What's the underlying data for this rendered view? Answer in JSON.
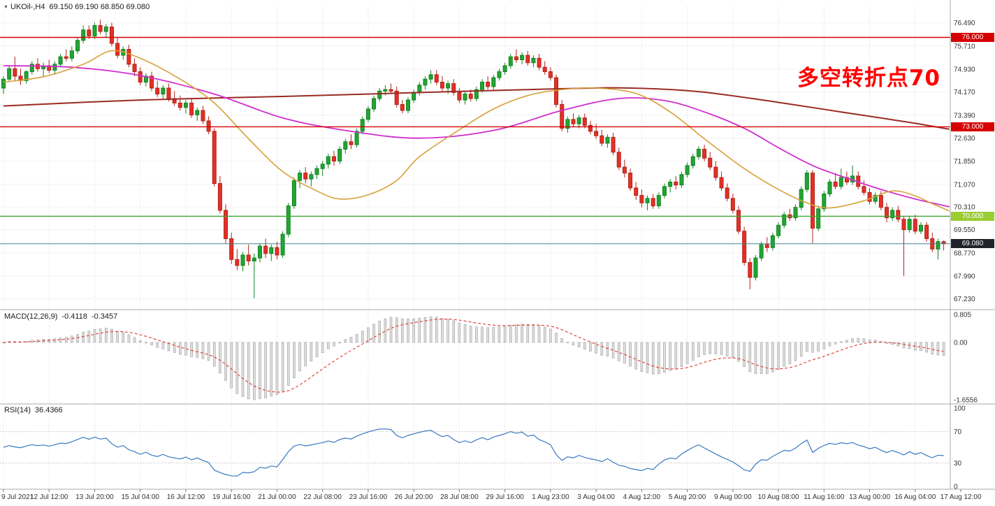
{
  "window": {
    "symbol_timeframe": "UKOil-,H4",
    "ohlc": "69.150 69.190 68.850 69.080"
  },
  "annotation": {
    "text": "多空转折点70",
    "color": "#fe0000"
  },
  "indicators": {
    "macd": {
      "label": "MACD(12,26,9)",
      "value_main": "-0.4118",
      "value_signal": "-0.3457",
      "fast": 12,
      "slow": 26,
      "signal": 9
    },
    "rsi": {
      "label": "RSI(14)",
      "value": "36.4366",
      "period": 14
    }
  },
  "chart_data": {
    "type": "candlestick",
    "symbol": "UKOil-",
    "timeframe": "H4",
    "last_bar": {
      "open": 69.15,
      "high": 69.19,
      "low": 68.85,
      "close": 69.08
    },
    "colors": {
      "up": "#22a534",
      "up_border": "#12831f",
      "down": "#e43026",
      "down_border": "#b2231a",
      "grid": "#dcdcdc",
      "macd_hist_fill": "#dedede",
      "macd_hist_stroke": "#9e9e9e",
      "macd_signal": "#e0382c",
      "rsi_line": "#3a79c0",
      "text": "#333333"
    },
    "price_axis": {
      "ticks": [
        {
          "t": "76.490",
          "v": 76.49
        },
        {
          "t": "75.710",
          "v": 75.71
        },
        {
          "t": "74.930",
          "v": 74.93
        },
        {
          "t": "74.170",
          "v": 74.17
        },
        {
          "t": "73.390",
          "v": 73.39
        },
        {
          "t": "72.630",
          "v": 72.63
        },
        {
          "t": "71.850",
          "v": 71.85
        },
        {
          "t": "71.070",
          "v": 71.07
        },
        {
          "t": "70.310",
          "v": 70.31
        },
        {
          "t": "69.550",
          "v": 69.55
        },
        {
          "t": "68.770",
          "v": 68.77
        },
        {
          "t": "67.990",
          "v": 67.99
        },
        {
          "t": "67.230",
          "v": 67.23
        }
      ]
    },
    "hlines": [
      {
        "label": "76.000",
        "value": 76.0,
        "line_color": "#d60000",
        "badge_color": "#d60000",
        "width": 1.4
      },
      {
        "label": "73.000",
        "value": 73.0,
        "line_color": "#d60000",
        "badge_color": "#d60000",
        "width": 1.4
      },
      {
        "label": "70.000",
        "value": 70.0,
        "line_color": "#3aa52f",
        "badge_color": "#9acd32",
        "width": 1.4
      },
      {
        "label": "69.080",
        "value": 69.08,
        "line_color": "#47808f",
        "badge_color": "#20242a",
        "width": 1
      }
    ],
    "time_axis": [
      "9 Jul 2021",
      "12 Jul 12:00",
      "13 Jul 20:00",
      "15 Jul 04:00",
      "16 Jul 12:00",
      "19 Jul 16:00",
      "21 Jul 00:00",
      "22 Jul 08:00",
      "23 Jul 16:00",
      "26 Jul 20:00",
      "28 Jul 08:00",
      "29 Jul 16:00",
      "1 Aug 23:00",
      "3 Aug 04:00",
      "4 Aug 12:00",
      "5 Aug 20:00",
      "9 Aug 00:00",
      "10 Aug 08:00",
      "11 Aug 16:00",
      "13 Aug 00:00",
      "16 Aug 04:00",
      "17 Aug 12:00"
    ],
    "macd_axis": {
      "max": 0.805,
      "min": -1.6556,
      "ticks": [
        {
          "t": "0.805",
          "v": 0.805
        },
        {
          "t": "0.00",
          "v": 0
        },
        {
          "t": "-1.6556",
          "v": -1.6556
        }
      ]
    },
    "rsi_axis": {
      "ticks": [
        {
          "t": "100",
          "v": 100
        },
        {
          "t": "70",
          "v": 70
        },
        {
          "t": "30",
          "v": 30
        },
        {
          "t": "0",
          "v": 0
        }
      ],
      "levels": [
        70,
        30
      ]
    },
    "ma_lines": [
      {
        "name": "ma-long-darkred",
        "color": "#9a2b22",
        "width": 2,
        "points": [
          [
            0,
            73.7
          ],
          [
            24,
            73.9
          ],
          [
            49,
            74.02
          ],
          [
            73,
            74.15
          ],
          [
            98,
            74.28
          ],
          [
            110,
            74.3
          ],
          [
            122,
            74.18
          ],
          [
            135,
            73.85
          ],
          [
            147,
            73.5
          ],
          [
            159,
            73.15
          ],
          [
            166,
            72.92
          ]
        ]
      },
      {
        "name": "ma-mid-magenta",
        "color": "#cf2ecf",
        "width": 1.8,
        "points": [
          [
            0,
            75.05
          ],
          [
            12,
            75.0
          ],
          [
            24,
            74.72
          ],
          [
            37,
            74.1
          ],
          [
            49,
            73.3
          ],
          [
            61,
            72.85
          ],
          [
            73,
            72.62
          ],
          [
            86,
            72.88
          ],
          [
            98,
            73.55
          ],
          [
            108,
            73.95
          ],
          [
            116,
            73.88
          ],
          [
            123,
            73.5
          ],
          [
            130,
            72.95
          ],
          [
            136,
            72.3
          ],
          [
            142,
            71.7
          ],
          [
            148,
            71.28
          ],
          [
            154,
            70.9
          ],
          [
            160,
            70.58
          ],
          [
            166,
            70.32
          ]
        ]
      },
      {
        "name": "ma-fast-orange",
        "color": "#d8a13a",
        "width": 1.6,
        "points": [
          [
            0,
            74.5
          ],
          [
            7,
            74.68
          ],
          [
            14,
            75.1
          ],
          [
            19,
            75.55
          ],
          [
            24,
            75.3
          ],
          [
            31,
            74.6
          ],
          [
            37,
            73.8
          ],
          [
            43,
            72.6
          ],
          [
            49,
            71.5
          ],
          [
            55,
            70.85
          ],
          [
            59,
            70.58
          ],
          [
            64,
            70.72
          ],
          [
            69,
            71.2
          ],
          [
            73,
            72.0
          ],
          [
            80,
            72.9
          ],
          [
            86,
            73.6
          ],
          [
            92,
            74.05
          ],
          [
            98,
            74.25
          ],
          [
            104,
            74.3
          ],
          [
            111,
            74.12
          ],
          [
            117,
            73.5
          ],
          [
            123,
            72.6
          ],
          [
            130,
            71.6
          ],
          [
            136,
            70.9
          ],
          [
            141,
            70.45
          ],
          [
            145,
            70.28
          ],
          [
            151,
            70.52
          ],
          [
            156,
            70.85
          ],
          [
            160,
            70.68
          ],
          [
            163,
            70.42
          ],
          [
            166,
            70.18
          ]
        ]
      }
    ],
    "candles": [
      [
        74.3,
        74.7,
        74.1,
        74.6
      ],
      [
        74.6,
        75.05,
        74.5,
        74.95
      ],
      [
        74.95,
        75.35,
        74.55,
        74.7
      ],
      [
        74.7,
        74.95,
        74.4,
        74.55
      ],
      [
        74.55,
        74.9,
        74.45,
        74.85
      ],
      [
        74.85,
        75.2,
        74.75,
        75.1
      ],
      [
        75.1,
        75.3,
        74.85,
        74.95
      ],
      [
        74.95,
        75.15,
        74.7,
        75.05
      ],
      [
        75.05,
        75.25,
        74.8,
        74.9
      ],
      [
        74.9,
        75.2,
        74.75,
        75.1
      ],
      [
        75.1,
        75.45,
        75.0,
        75.35
      ],
      [
        75.35,
        75.6,
        75.2,
        75.3
      ],
      [
        75.3,
        75.7,
        75.2,
        75.55
      ],
      [
        75.55,
        76.0,
        75.45,
        75.9
      ],
      [
        75.9,
        76.4,
        75.8,
        76.25
      ],
      [
        76.25,
        76.4,
        75.95,
        76.05
      ],
      [
        76.05,
        76.49,
        75.95,
        76.4
      ],
      [
        76.4,
        76.6,
        76.1,
        76.2
      ],
      [
        76.2,
        76.45,
        76.0,
        76.35
      ],
      [
        76.35,
        76.49,
        75.7,
        75.8
      ],
      [
        75.8,
        76.0,
        75.3,
        75.4
      ],
      [
        75.4,
        75.7,
        75.25,
        75.6
      ],
      [
        75.6,
        75.75,
        75.0,
        75.1
      ],
      [
        75.1,
        75.3,
        74.7,
        74.85
      ],
      [
        74.85,
        75.0,
        74.4,
        74.5
      ],
      [
        74.5,
        74.8,
        74.35,
        74.7
      ],
      [
        74.7,
        74.85,
        74.2,
        74.3
      ],
      [
        74.3,
        74.55,
        74.0,
        74.1
      ],
      [
        74.1,
        74.4,
        73.95,
        74.3
      ],
      [
        74.3,
        74.45,
        73.85,
        73.95
      ],
      [
        73.95,
        74.2,
        73.7,
        73.8
      ],
      [
        73.8,
        74.05,
        73.55,
        73.65
      ],
      [
        73.65,
        73.9,
        73.45,
        73.8
      ],
      [
        73.8,
        73.95,
        73.3,
        73.4
      ],
      [
        73.4,
        73.65,
        73.2,
        73.55
      ],
      [
        73.55,
        73.7,
        73.1,
        73.2
      ],
      [
        73.2,
        73.35,
        72.75,
        72.85
      ],
      [
        72.85,
        72.95,
        71.0,
        71.1
      ],
      [
        71.1,
        71.35,
        70.1,
        70.2
      ],
      [
        70.2,
        70.4,
        69.1,
        69.25
      ],
      [
        69.25,
        69.45,
        68.4,
        68.55
      ],
      [
        68.55,
        68.9,
        68.2,
        68.35
      ],
      [
        68.35,
        68.8,
        68.15,
        68.7
      ],
      [
        68.7,
        69.05,
        68.35,
        68.5
      ],
      [
        68.5,
        68.75,
        67.25,
        68.6
      ],
      [
        68.6,
        69.1,
        68.45,
        69.0
      ],
      [
        69.0,
        69.25,
        68.6,
        68.75
      ],
      [
        68.75,
        69.05,
        68.5,
        68.95
      ],
      [
        68.95,
        69.15,
        68.55,
        68.7
      ],
      [
        68.7,
        69.5,
        68.6,
        69.4
      ],
      [
        69.4,
        70.45,
        69.3,
        70.35
      ],
      [
        70.35,
        71.3,
        70.25,
        71.2
      ],
      [
        71.2,
        71.55,
        70.95,
        71.45
      ],
      [
        71.45,
        71.65,
        71.1,
        71.25
      ],
      [
        71.25,
        71.5,
        71.0,
        71.4
      ],
      [
        71.4,
        71.7,
        71.25,
        71.6
      ],
      [
        71.6,
        71.85,
        71.35,
        71.75
      ],
      [
        71.75,
        72.1,
        71.6,
        72.0
      ],
      [
        72.0,
        72.2,
        71.7,
        71.85
      ],
      [
        71.85,
        72.35,
        71.75,
        72.25
      ],
      [
        72.25,
        72.6,
        72.1,
        72.5
      ],
      [
        72.5,
        72.75,
        72.25,
        72.4
      ],
      [
        72.4,
        72.95,
        72.3,
        72.85
      ],
      [
        72.85,
        73.35,
        72.75,
        73.25
      ],
      [
        73.25,
        73.7,
        73.15,
        73.6
      ],
      [
        73.6,
        74.05,
        73.5,
        73.95
      ],
      [
        73.95,
        74.3,
        73.85,
        74.2
      ],
      [
        74.2,
        74.4,
        74.05,
        74.25
      ],
      [
        74.25,
        74.45,
        74.1,
        74.2
      ],
      [
        74.2,
        74.35,
        73.65,
        73.75
      ],
      [
        73.75,
        73.9,
        73.45,
        73.55
      ],
      [
        73.55,
        74.0,
        73.45,
        73.9
      ],
      [
        73.9,
        74.25,
        73.8,
        74.15
      ],
      [
        74.15,
        74.5,
        74.05,
        74.4
      ],
      [
        74.4,
        74.7,
        74.25,
        74.6
      ],
      [
        74.6,
        74.9,
        74.45,
        74.75
      ],
      [
        74.75,
        74.9,
        74.4,
        74.5
      ],
      [
        74.5,
        74.7,
        74.2,
        74.3
      ],
      [
        74.3,
        74.55,
        74.1,
        74.45
      ],
      [
        74.45,
        74.6,
        74.05,
        74.15
      ],
      [
        74.15,
        74.3,
        73.8,
        73.9
      ],
      [
        73.9,
        74.2,
        73.75,
        74.1
      ],
      [
        74.1,
        74.25,
        73.85,
        73.95
      ],
      [
        73.95,
        74.35,
        73.85,
        74.25
      ],
      [
        74.25,
        74.6,
        74.15,
        74.5
      ],
      [
        74.5,
        74.7,
        74.25,
        74.35
      ],
      [
        74.35,
        74.75,
        74.25,
        74.65
      ],
      [
        74.65,
        74.95,
        74.55,
        74.85
      ],
      [
        74.85,
        75.15,
        74.75,
        75.05
      ],
      [
        75.05,
        75.45,
        74.95,
        75.35
      ],
      [
        75.35,
        75.6,
        75.15,
        75.25
      ],
      [
        75.25,
        75.5,
        75.1,
        75.4
      ],
      [
        75.4,
        75.55,
        75.05,
        75.15
      ],
      [
        75.15,
        75.4,
        75.0,
        75.3
      ],
      [
        75.3,
        75.45,
        74.9,
        75.0
      ],
      [
        75.0,
        75.2,
        74.75,
        74.85
      ],
      [
        74.85,
        75.0,
        74.55,
        74.65
      ],
      [
        74.65,
        74.75,
        73.65,
        73.75
      ],
      [
        73.75,
        73.9,
        72.85,
        72.95
      ],
      [
        72.95,
        73.35,
        72.8,
        73.25
      ],
      [
        73.25,
        73.45,
        73.0,
        73.1
      ],
      [
        73.1,
        73.4,
        72.95,
        73.3
      ],
      [
        73.3,
        73.45,
        72.95,
        73.05
      ],
      [
        73.05,
        73.2,
        72.75,
        72.85
      ],
      [
        72.85,
        73.1,
        72.6,
        72.7
      ],
      [
        72.7,
        72.9,
        72.35,
        72.45
      ],
      [
        72.45,
        72.75,
        72.3,
        72.65
      ],
      [
        72.65,
        72.8,
        72.05,
        72.15
      ],
      [
        72.15,
        72.3,
        71.55,
        71.65
      ],
      [
        71.65,
        71.9,
        71.3,
        71.45
      ],
      [
        71.45,
        71.6,
        70.85,
        70.95
      ],
      [
        70.95,
        71.15,
        70.55,
        70.7
      ],
      [
        70.7,
        70.9,
        70.3,
        70.45
      ],
      [
        70.45,
        70.7,
        70.2,
        70.6
      ],
      [
        70.6,
        70.75,
        70.25,
        70.35
      ],
      [
        70.35,
        70.8,
        70.25,
        70.7
      ],
      [
        70.7,
        71.1,
        70.6,
        71.0
      ],
      [
        71.0,
        71.25,
        70.8,
        71.15
      ],
      [
        71.15,
        71.35,
        70.9,
        71.05
      ],
      [
        71.05,
        71.5,
        70.95,
        71.4
      ],
      [
        71.4,
        71.8,
        71.3,
        71.7
      ],
      [
        71.7,
        72.1,
        71.6,
        72.0
      ],
      [
        72.0,
        72.35,
        71.9,
        72.25
      ],
      [
        72.25,
        72.4,
        71.85,
        71.95
      ],
      [
        71.95,
        72.15,
        71.55,
        71.65
      ],
      [
        71.65,
        71.85,
        71.2,
        71.3
      ],
      [
        71.3,
        71.5,
        70.85,
        70.95
      ],
      [
        70.95,
        71.1,
        70.5,
        70.6
      ],
      [
        70.6,
        70.75,
        70.1,
        70.2
      ],
      [
        70.2,
        70.35,
        69.4,
        69.5
      ],
      [
        69.5,
        69.65,
        68.35,
        68.45
      ],
      [
        68.45,
        68.6,
        67.55,
        67.95
      ],
      [
        67.95,
        68.7,
        67.85,
        68.6
      ],
      [
        68.6,
        69.15,
        68.5,
        69.05
      ],
      [
        69.05,
        69.3,
        68.8,
        68.95
      ],
      [
        68.95,
        69.45,
        68.85,
        69.35
      ],
      [
        69.35,
        69.8,
        69.25,
        69.7
      ],
      [
        69.7,
        70.15,
        69.6,
        70.05
      ],
      [
        70.05,
        70.25,
        69.85,
        69.95
      ],
      [
        69.95,
        70.4,
        69.85,
        70.3
      ],
      [
        70.3,
        71.0,
        70.2,
        70.9
      ],
      [
        70.9,
        71.55,
        70.8,
        71.45
      ],
      [
        71.45,
        71.55,
        69.1,
        69.6
      ],
      [
        69.6,
        70.35,
        69.5,
        70.25
      ],
      [
        70.25,
        70.85,
        70.15,
        70.75
      ],
      [
        70.75,
        71.25,
        70.65,
        71.15
      ],
      [
        71.15,
        71.45,
        70.9,
        71.0
      ],
      [
        71.0,
        71.6,
        70.9,
        71.3
      ],
      [
        71.3,
        71.5,
        71.05,
        71.15
      ],
      [
        71.15,
        71.7,
        71.05,
        71.35
      ],
      [
        71.35,
        71.5,
        70.9,
        71.0
      ],
      [
        71.0,
        71.2,
        70.7,
        70.8
      ],
      [
        70.8,
        70.95,
        70.4,
        70.5
      ],
      [
        70.5,
        70.8,
        70.4,
        70.7
      ],
      [
        70.7,
        70.85,
        70.2,
        70.3
      ],
      [
        70.3,
        70.45,
        69.8,
        69.95
      ],
      [
        69.95,
        70.3,
        69.85,
        70.2
      ],
      [
        70.2,
        70.35,
        69.8,
        69.9
      ],
      [
        69.9,
        70.0,
        68.0,
        69.55
      ],
      [
        69.55,
        70.0,
        69.45,
        69.9
      ],
      [
        69.9,
        70.05,
        69.4,
        69.5
      ],
      [
        69.5,
        69.8,
        69.4,
        69.7
      ],
      [
        69.7,
        69.8,
        69.15,
        69.25
      ],
      [
        69.25,
        69.45,
        68.8,
        68.9
      ],
      [
        68.9,
        69.25,
        68.55,
        69.15
      ],
      [
        69.15,
        69.19,
        68.85,
        69.08
      ]
    ]
  }
}
